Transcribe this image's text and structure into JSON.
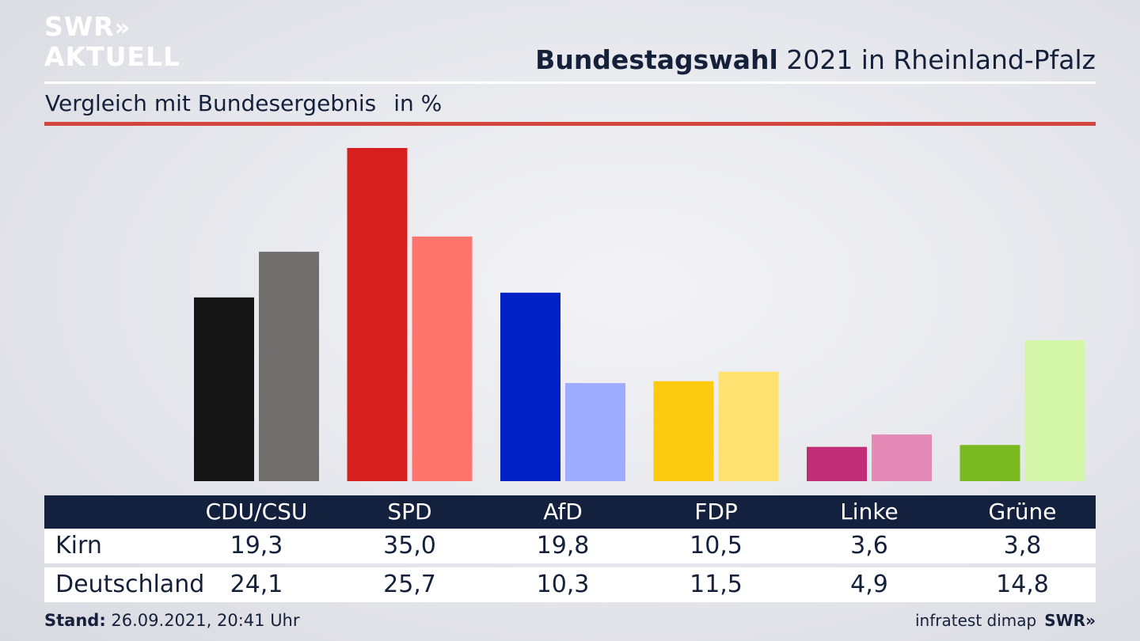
{
  "brand": {
    "logo_line1": "SWR",
    "logo_chevrons": "»",
    "logo_line2": "AKTUELL"
  },
  "header": {
    "title_bold": "Bundestagswahl",
    "title_rest": "2021 in Rheinland-Pfalz"
  },
  "subheader": {
    "text": "Vergleich mit Bundesergebnis",
    "unit": "in %"
  },
  "table": {
    "rows": [
      {
        "label": "Kirn",
        "values": [
          "19,3",
          "35,0",
          "19,8",
          "10,5",
          "3,6",
          "3,8"
        ]
      },
      {
        "label": "Deutschland",
        "values": [
          "24,1",
          "25,7",
          "10,3",
          "11,5",
          "4,9",
          "14,8"
        ]
      }
    ]
  },
  "footer": {
    "stand_label": "Stand:",
    "stand_value": "26.09.2021, 20:41 Uhr",
    "source": "infratest dimap",
    "broadcaster": "SWR»"
  },
  "chart_data": {
    "type": "bar",
    "title": "Bundestagswahl 2021 in Rheinland-Pfalz",
    "subtitle": "Vergleich mit Bundesergebnis in %",
    "categories": [
      "CDU/CSU",
      "SPD",
      "AfD",
      "FDP",
      "Linke",
      "Grüne"
    ],
    "series": [
      {
        "name": "Kirn",
        "values": [
          19.3,
          35.0,
          19.8,
          10.5,
          3.6,
          3.8
        ],
        "colors": [
          "#151515",
          "#d81f1f",
          "#0021c6",
          "#fccb10",
          "#c02f76",
          "#7aba20"
        ]
      },
      {
        "name": "Deutschland",
        "values": [
          24.1,
          25.7,
          10.3,
          11.5,
          4.9,
          14.8
        ],
        "colors": [
          "#706f6d",
          "#ff756e",
          "#9eabff",
          "#fde271",
          "#e38ab6",
          "#d3f6a9"
        ]
      }
    ],
    "ylim": [
      0,
      35.0
    ],
    "grid": false,
    "legend": "table-below"
  }
}
